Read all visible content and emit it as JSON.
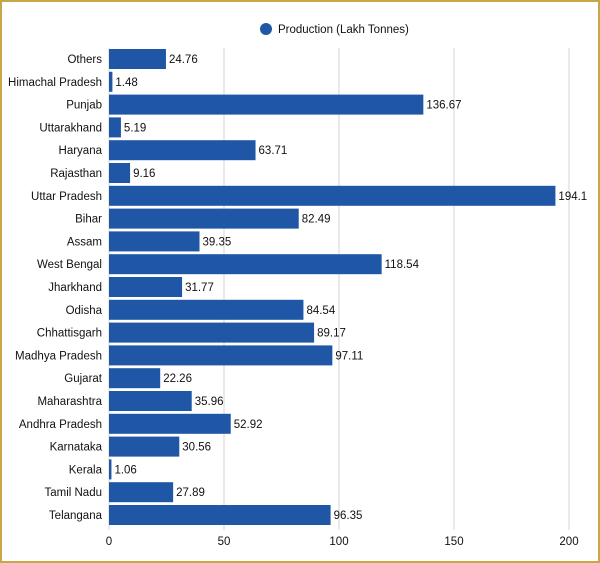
{
  "colors": {
    "bar": "#1f56a5",
    "grid": "#d4d4d4",
    "frame": "#c9a646",
    "text": "#111111"
  },
  "chart_data": {
    "type": "bar",
    "orientation": "horizontal",
    "title": "",
    "xlabel": "",
    "ylabel": "",
    "legend": {
      "position": "top-right",
      "marker": "circle"
    },
    "series": [
      {
        "name": "Production (Lakh Tonnes)",
        "values": [
          24.76,
          1.48,
          136.67,
          5.19,
          63.71,
          9.16,
          194.1,
          82.49,
          39.35,
          118.54,
          31.77,
          84.54,
          89.17,
          97.11,
          22.26,
          35.96,
          52.92,
          30.56,
          1.06,
          27.89,
          96.35
        ],
        "value_labels": [
          "24.76",
          "1.48",
          "136.67",
          "5.19",
          "63.71",
          "9.16",
          "194.1",
          "82.49",
          "39.35",
          "118.54",
          "31.77",
          "84.54",
          "89.17",
          "97.11",
          "22.26",
          "35.96",
          "52.92",
          "30.56",
          "1.06",
          "27.89",
          "96.35"
        ]
      }
    ],
    "categories": [
      "Others",
      "Himachal Pradesh",
      "Punjab",
      "Uttarakhand",
      "Haryana",
      "Rajasthan",
      "Uttar Pradesh",
      "Bihar",
      "Assam",
      "West Bengal",
      "Jharkhand",
      "Odisha",
      "Chhattisgarh",
      "Madhya Pradesh",
      "Gujarat",
      "Maharashtra",
      "Andhra Pradesh",
      "Karnataka",
      "Kerala",
      "Tamil Nadu",
      "Telangana"
    ],
    "xlim": [
      0,
      200
    ],
    "xticks": [
      0,
      50,
      100,
      150,
      200
    ],
    "xtick_labels": [
      "0",
      "50",
      "100",
      "150",
      "200"
    ],
    "grid": true
  }
}
